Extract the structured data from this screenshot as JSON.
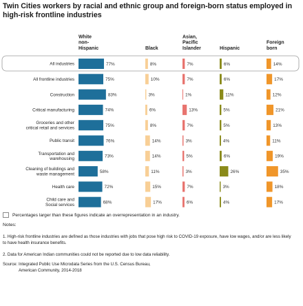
{
  "title": "Twin Cities workers by racial and ethnic group and foreign-born status employed in high-risk frontline industries",
  "chart_data": {
    "type": "table",
    "columns": [
      {
        "label_lines": [
          "White",
          "non-",
          "Hispanic"
        ],
        "color": "#1e6f9a"
      },
      {
        "label_lines": [
          "Black"
        ],
        "color": "#f8cf96"
      },
      {
        "label_lines": [
          "Asian,",
          "Pacific",
          "Islander"
        ],
        "color": "#e8746f"
      },
      {
        "label_lines": [
          "Hispanic"
        ],
        "color": "#8a8a1a"
      },
      {
        "label_lines": [
          "Foreign",
          "born"
        ],
        "color": "#f0962a"
      }
    ],
    "rows": [
      {
        "label_lines": [
          "All industries"
        ],
        "values": [
          "77%",
          "8%",
          "7%",
          "6%",
          "14%"
        ],
        "nums": [
          77,
          8,
          7,
          6,
          14
        ],
        "highlight": true
      },
      {
        "label_lines": [
          "All frontline industries"
        ],
        "values": [
          "75%",
          "10%",
          "7%",
          "6%",
          "17%"
        ],
        "nums": [
          75,
          10,
          7,
          6,
          17
        ]
      },
      {
        "label_lines": [
          "Construction"
        ],
        "values": [
          "83%",
          "3%",
          "1%",
          "11%",
          "12%"
        ],
        "nums": [
          83,
          3,
          1,
          11,
          12
        ]
      },
      {
        "label_lines": [
          "Critical manufacturing"
        ],
        "values": [
          "74%",
          "6%",
          "13%",
          "5%",
          "21%"
        ],
        "nums": [
          74,
          6,
          13,
          5,
          21
        ]
      },
      {
        "label_lines": [
          "Groceries and other",
          "critical retail and services"
        ],
        "values": [
          "75%",
          "8%",
          "7%",
          "5%",
          "13%"
        ],
        "nums": [
          75,
          8,
          7,
          5,
          13
        ]
      },
      {
        "label_lines": [
          "Public transit"
        ],
        "values": [
          "76%",
          "14%",
          "3%",
          "4%",
          "11%"
        ],
        "nums": [
          76,
          14,
          3,
          4,
          11
        ]
      },
      {
        "label_lines": [
          "Transportation and",
          "warehousing"
        ],
        "values": [
          "73%",
          "14%",
          "5%",
          "6%",
          "19%"
        ],
        "nums": [
          73,
          14,
          5,
          6,
          19
        ]
      },
      {
        "label_lines": [
          "Cleaning of buildings and",
          "waste management"
        ],
        "values": [
          "58%",
          "11%",
          "3%",
          "26%",
          "35%"
        ],
        "nums": [
          58,
          11,
          3,
          26,
          35
        ]
      },
      {
        "label_lines": [
          "Health care"
        ],
        "values": [
          "72%",
          "15%",
          "7%",
          "3%",
          "18%"
        ],
        "nums": [
          72,
          15,
          7,
          3,
          18
        ]
      },
      {
        "label_lines": [
          "Child care and",
          "Social services"
        ],
        "values": [
          "68%",
          "17%",
          "6%",
          "4%",
          "17%"
        ],
        "nums": [
          68,
          17,
          6,
          4,
          17
        ]
      }
    ]
  },
  "legend_text": "Percentages larger than these figures indicate an overrepresentation in an industry.",
  "notes_title": "Notes:",
  "note1": "1. High-risk frontline industries are defined as those industries with jobs that pose high risk to COVID-19 exposure, have low wages, and/or are less likely to have health insurance benefits.",
  "note2": "2. Data for American Indian communities could not be reported due to low data reliability.",
  "source_line1": "Source: Integrated Public Use Microdata Series from the U.S. Census Bureau,",
  "source_line2": "American Community, 2014-2018"
}
